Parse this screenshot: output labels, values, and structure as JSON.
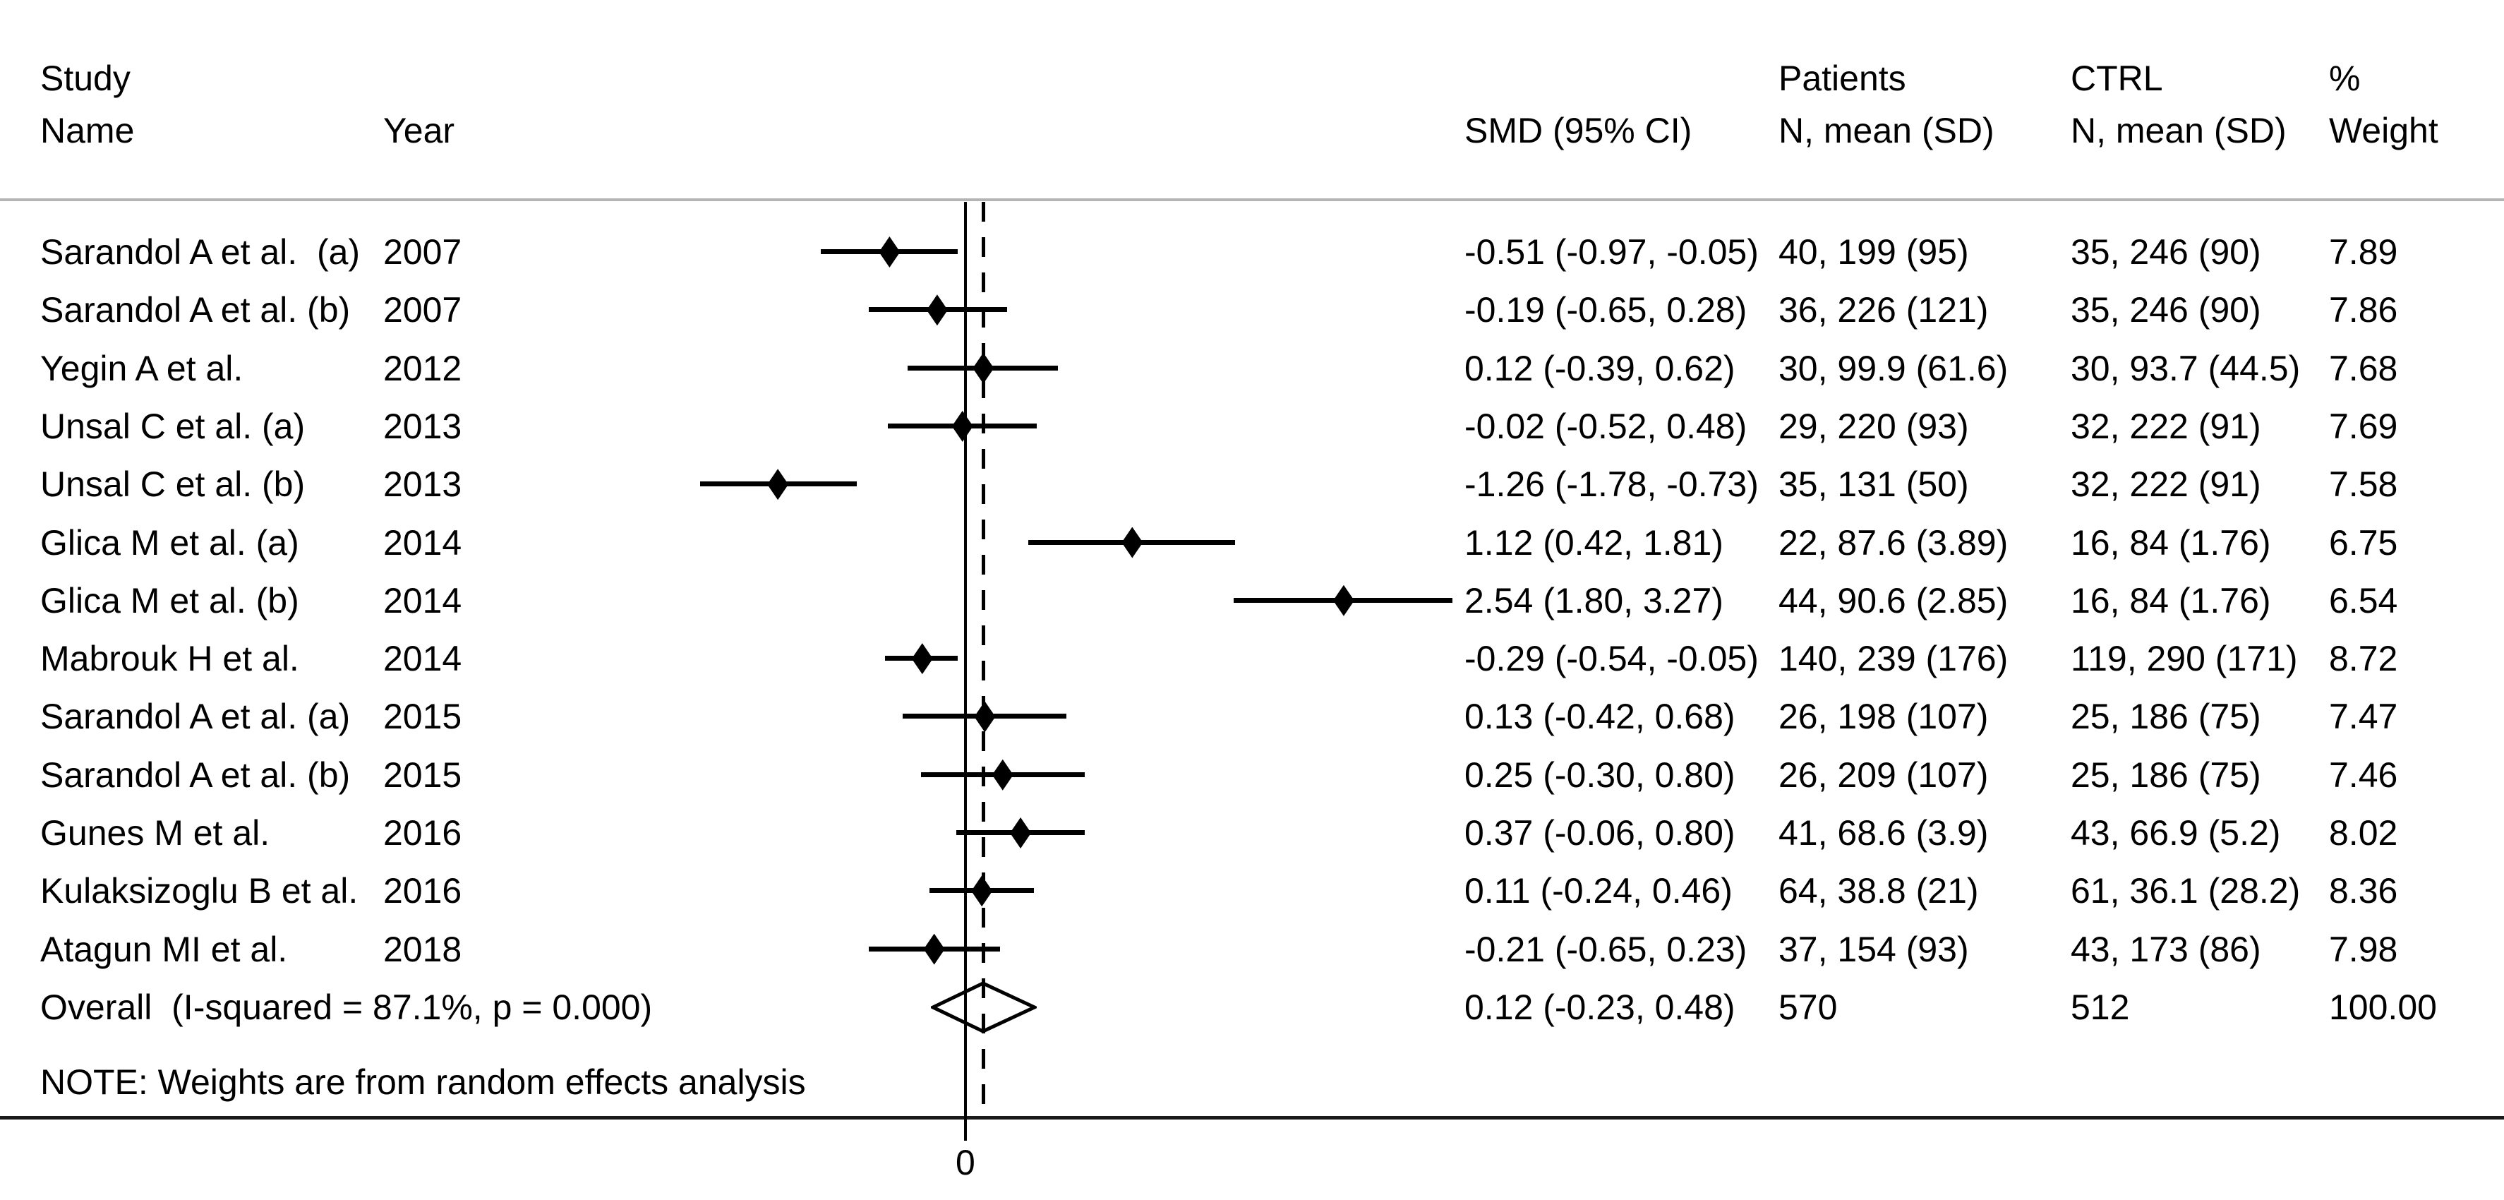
{
  "header": {
    "study_line1": "Study",
    "study_line2": "Name",
    "year": "Year",
    "smd": "SMD (95% CI)",
    "patients_line1": "Patients",
    "patients_line2": "N, mean (SD)",
    "ctrl_line1": "CTRL",
    "ctrl_line2": "N, mean (SD)",
    "weight_line1": "%",
    "weight_line2": "Weight"
  },
  "note": "NOTE: Weights are from random effects analysis",
  "axis": {
    "tick_label": "0"
  },
  "colors": {
    "text": "#000000",
    "header_rule": "#b4b4b4",
    "axis": "#1a1a1a"
  },
  "chart_data": {
    "type": "forest",
    "effect_measure": "SMD",
    "x_reference": 0,
    "x_overall_dashed_line": 0.12,
    "axis_tick_labels": [
      "0"
    ],
    "studies": [
      {
        "name": "Sarandol A et al.  (a)",
        "year": "2007",
        "smd": -0.51,
        "ci": [
          -0.97,
          -0.05
        ],
        "smd_ci_label": "-0.51 (-0.97, -0.05)",
        "patients": "40, 199 (95)",
        "ctrl": "35, 246 (90)",
        "weight": "7.89"
      },
      {
        "name": "Sarandol A et al. (b)",
        "year": "2007",
        "smd": -0.19,
        "ci": [
          -0.65,
          0.28
        ],
        "smd_ci_label": "-0.19 (-0.65, 0.28)",
        "patients": "36, 226 (121)",
        "ctrl": "35, 246 (90)",
        "weight": "7.86"
      },
      {
        "name": "Yegin A et al.",
        "year": "2012",
        "smd": 0.12,
        "ci": [
          -0.39,
          0.62
        ],
        "smd_ci_label": "0.12 (-0.39, 0.62)",
        "patients": "30, 99.9 (61.6)",
        "ctrl": "30, 93.7 (44.5)",
        "weight": "7.68"
      },
      {
        "name": "Unsal C et al. (a)",
        "year": "2013",
        "smd": -0.02,
        "ci": [
          -0.52,
          0.48
        ],
        "smd_ci_label": "-0.02 (-0.52, 0.48)",
        "patients": "29, 220 (93)",
        "ctrl": "32, 222 (91)",
        "weight": "7.69"
      },
      {
        "name": "Unsal C et al. (b)",
        "year": "2013",
        "smd": -1.26,
        "ci": [
          -1.78,
          -0.73
        ],
        "smd_ci_label": "-1.26 (-1.78, -0.73)",
        "patients": "35, 131 (50)",
        "ctrl": "32, 222 (91)",
        "weight": "7.58"
      },
      {
        "name": "Glica M et al. (a)",
        "year": "2014",
        "smd": 1.12,
        "ci": [
          0.42,
          1.81
        ],
        "smd_ci_label": "1.12 (0.42, 1.81)",
        "patients": "22, 87.6 (3.89)",
        "ctrl": "16, 84 (1.76)",
        "weight": "6.75"
      },
      {
        "name": "Glica M et al. (b)",
        "year": "2014",
        "smd": 2.54,
        "ci": [
          1.8,
          3.27
        ],
        "smd_ci_label": "2.54 (1.80, 3.27)",
        "patients": "44, 90.6 (2.85)",
        "ctrl": "16, 84 (1.76)",
        "weight": "6.54"
      },
      {
        "name": "Mabrouk H et al.",
        "year": "2014",
        "smd": -0.29,
        "ci": [
          -0.54,
          -0.05
        ],
        "smd_ci_label": "-0.29 (-0.54, -0.05)",
        "patients": "140, 239 (176)",
        "ctrl": "119, 290 (171)",
        "weight": "8.72"
      },
      {
        "name": "Sarandol A et al. (a)",
        "year": "2015",
        "smd": 0.13,
        "ci": [
          -0.42,
          0.68
        ],
        "smd_ci_label": "0.13 (-0.42, 0.68)",
        "patients": "26, 198 (107)",
        "ctrl": "25, 186 (75)",
        "weight": "7.47"
      },
      {
        "name": "Sarandol A et al. (b)",
        "year": "2015",
        "smd": 0.25,
        "ci": [
          -0.3,
          0.8
        ],
        "smd_ci_label": "0.25 (-0.30, 0.80)",
        "patients": "26, 209 (107)",
        "ctrl": "25, 186 (75)",
        "weight": "7.46"
      },
      {
        "name": "Gunes M et al.",
        "year": "2016",
        "smd": 0.37,
        "ci": [
          -0.06,
          0.8
        ],
        "smd_ci_label": "0.37 (-0.06, 0.80)",
        "patients": "41, 68.6 (3.9)",
        "ctrl": "43, 66.9 (5.2)",
        "weight": "8.02"
      },
      {
        "name": "Kulaksizoglu B et al.",
        "year": "2016",
        "smd": 0.11,
        "ci": [
          -0.24,
          0.46
        ],
        "smd_ci_label": "0.11 (-0.24, 0.46)",
        "patients": "64, 38.8 (21)",
        "ctrl": "61, 36.1 (28.2)",
        "weight": "8.36"
      },
      {
        "name": "Atagun MI et al.",
        "year": "2018",
        "smd": -0.21,
        "ci": [
          -0.65,
          0.23
        ],
        "smd_ci_label": "-0.21 (-0.65, 0.23)",
        "patients": "37, 154 (93)",
        "ctrl": "43, 173 (86)",
        "weight": "7.98"
      }
    ],
    "overall": {
      "label": "Overall  (I-squared = 87.1%, p = 0.000)",
      "smd": 0.12,
      "ci": [
        -0.23,
        0.48
      ],
      "smd_ci_label": "0.12 (-0.23, 0.48)",
      "patients": "570",
      "ctrl": "512",
      "weight": "100.00"
    }
  }
}
